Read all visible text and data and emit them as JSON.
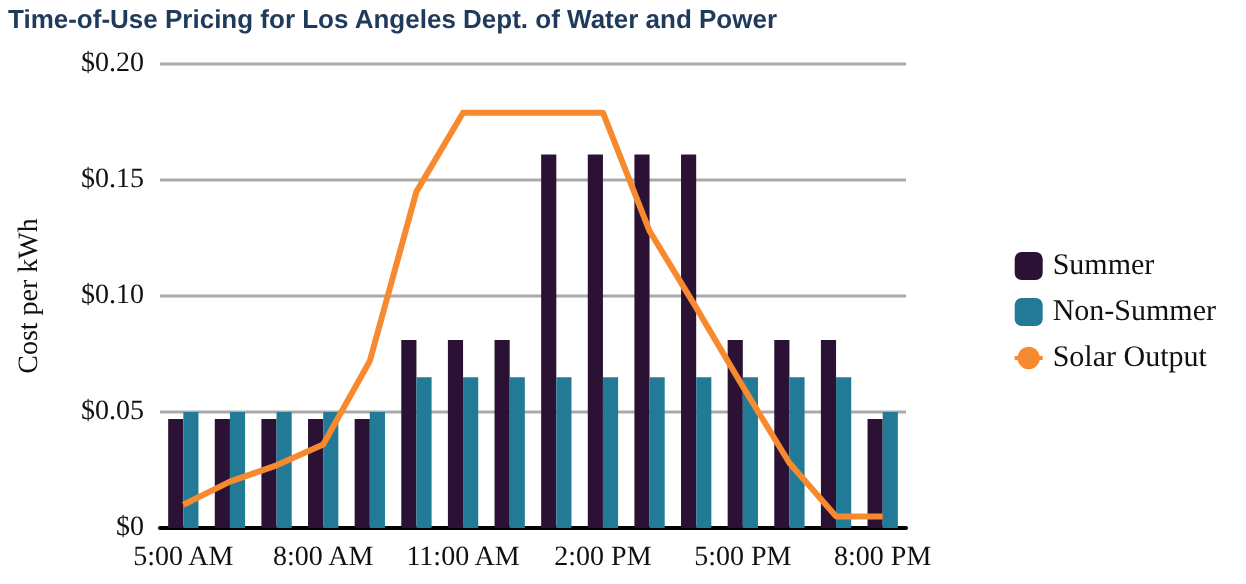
{
  "chart_data": {
    "type": "bar",
    "title": "Time-of-Use Pricing for Los Angeles Dept. of Water and Power",
    "ylabel": "Cost per kWh",
    "categories": [
      "5:00 AM",
      null,
      null,
      "8:00 AM",
      null,
      null,
      "11:00 AM",
      null,
      null,
      "2:00 PM",
      null,
      null,
      "5:00 PM",
      null,
      null,
      "8:00 PM"
    ],
    "series": [
      {
        "name": "Summer",
        "color": "#2b1235",
        "values": [
          0.047,
          0.047,
          0.047,
          0.047,
          0.047,
          0.081,
          0.081,
          0.081,
          0.161,
          0.161,
          0.161,
          0.161,
          0.081,
          0.081,
          0.081,
          0.047
        ]
      },
      {
        "name": "Non-Summer",
        "color": "#237a96",
        "values": [
          0.05,
          0.05,
          0.05,
          0.05,
          0.05,
          0.065,
          0.065,
          0.065,
          0.065,
          0.065,
          0.065,
          0.065,
          0.065,
          0.065,
          0.065,
          0.05
        ]
      },
      {
        "name": "Solar Output",
        "type": "line",
        "color": "#f7892f",
        "values": [
          0.01,
          0.02,
          0.027,
          0.036,
          0.072,
          0.145,
          0.179,
          0.179,
          0.179,
          0.179,
          0.128,
          0.095,
          0.061,
          0.028,
          0.005,
          0.005
        ]
      }
    ],
    "ylim": [
      0,
      0.2
    ],
    "yticks": [
      {
        "value": 0,
        "label": "$0"
      },
      {
        "value": 0.05,
        "label": "$0.05"
      },
      {
        "value": 0.1,
        "label": "$0.10"
      },
      {
        "value": 0.15,
        "label": "$0.15"
      },
      {
        "value": 0.2,
        "label": "$0.20"
      }
    ],
    "grid": "y",
    "legend": "right",
    "marker": "none"
  }
}
